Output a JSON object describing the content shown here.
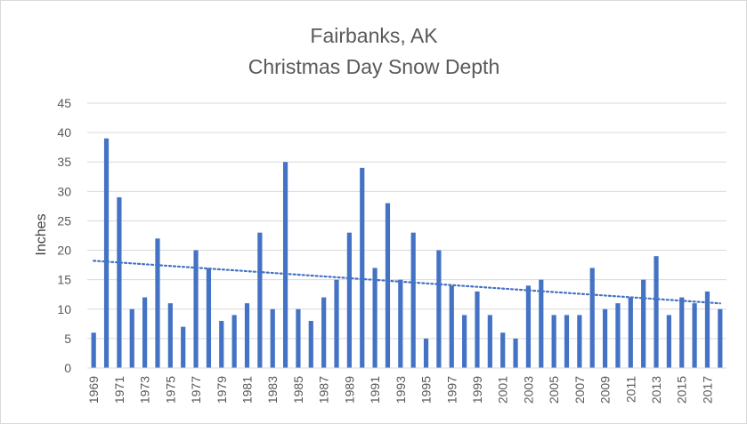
{
  "chart_data": {
    "type": "bar",
    "title_lines": [
      "Fairbanks, AK",
      "Christmas Day Snow Depth"
    ],
    "xlabel": "",
    "ylabel": "Inches",
    "ylim": [
      0,
      45
    ],
    "yticks": [
      0,
      5,
      10,
      15,
      20,
      25,
      30,
      35,
      40,
      45
    ],
    "x_tick_every": 2,
    "grid": true,
    "legend": "none",
    "trendline": {
      "type": "linear",
      "style": "dotted"
    },
    "colors": {
      "bar": "#4472c4",
      "grid": "#d9d9d9",
      "text": "#595959"
    },
    "categories": [
      "1969",
      "1970",
      "1971",
      "1972",
      "1973",
      "1974",
      "1975",
      "1976",
      "1977",
      "1978",
      "1979",
      "1980",
      "1981",
      "1982",
      "1983",
      "1984",
      "1985",
      "1986",
      "1987",
      "1988",
      "1989",
      "1990",
      "1991",
      "1992",
      "1993",
      "1994",
      "1995",
      "1996",
      "1997",
      "1998",
      "1999",
      "2000",
      "2001",
      "2002",
      "2003",
      "2004",
      "2005",
      "2006",
      "2007",
      "2008",
      "2009",
      "2010",
      "2011",
      "2012",
      "2013",
      "2014",
      "2015",
      "2016",
      "2017",
      "2018"
    ],
    "values": [
      6,
      39,
      29,
      10,
      12,
      22,
      11,
      7,
      20,
      17,
      8,
      9,
      11,
      23,
      10,
      35,
      10,
      8,
      12,
      15,
      23,
      34,
      17,
      28,
      15,
      23,
      5,
      20,
      14,
      9,
      13,
      9,
      6,
      5,
      14,
      15,
      9,
      9,
      9,
      17,
      10,
      11,
      12,
      15,
      19,
      9,
      12,
      11,
      13,
      10
    ]
  }
}
